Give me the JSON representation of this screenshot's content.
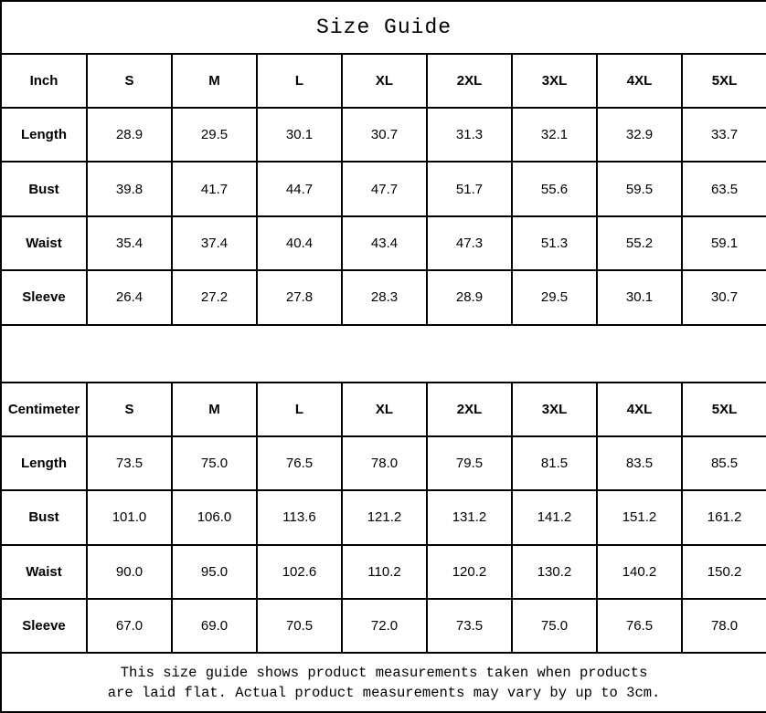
{
  "title": "Size Guide",
  "sizes": [
    "S",
    "M",
    "L",
    "XL",
    "2XL",
    "3XL",
    "4XL",
    "5XL"
  ],
  "inch_table": {
    "unit_label": "Inch",
    "rows": [
      {
        "label": "Length",
        "values": [
          "28.9",
          "29.5",
          "30.1",
          "30.7",
          "31.3",
          "32.1",
          "32.9",
          "33.7"
        ]
      },
      {
        "label": "Bust",
        "values": [
          "39.8",
          "41.7",
          "44.7",
          "47.7",
          "51.7",
          "55.6",
          "59.5",
          "63.5"
        ]
      },
      {
        "label": "Waist",
        "values": [
          "35.4",
          "37.4",
          "40.4",
          "43.4",
          "47.3",
          "51.3",
          "55.2",
          "59.1"
        ]
      },
      {
        "label": "Sleeve",
        "values": [
          "26.4",
          "27.2",
          "27.8",
          "28.3",
          "28.9",
          "29.5",
          "30.1",
          "30.7"
        ]
      }
    ]
  },
  "cm_table": {
    "unit_label": "Centimeter",
    "rows": [
      {
        "label": "Length",
        "values": [
          "73.5",
          "75.0",
          "76.5",
          "78.0",
          "79.5",
          "81.5",
          "83.5",
          "85.5"
        ]
      },
      {
        "label": "Bust",
        "values": [
          "101.0",
          "106.0",
          "113.6",
          "121.2",
          "131.2",
          "141.2",
          "151.2",
          "161.2"
        ]
      },
      {
        "label": "Waist",
        "values": [
          "90.0",
          "95.0",
          "102.6",
          "110.2",
          "120.2",
          "130.2",
          "140.2",
          "150.2"
        ]
      },
      {
        "label": "Sleeve",
        "values": [
          "67.0",
          "69.0",
          "70.5",
          "72.0",
          "73.5",
          "75.0",
          "76.5",
          "78.0"
        ]
      }
    ]
  },
  "footer": {
    "line1": "This size guide shows product measurements taken when products",
    "line2": "are laid flat. Actual product measurements may vary by up to 3cm."
  },
  "colors": {
    "border": "#000000",
    "background": "#ffffff",
    "text": "#000000"
  }
}
